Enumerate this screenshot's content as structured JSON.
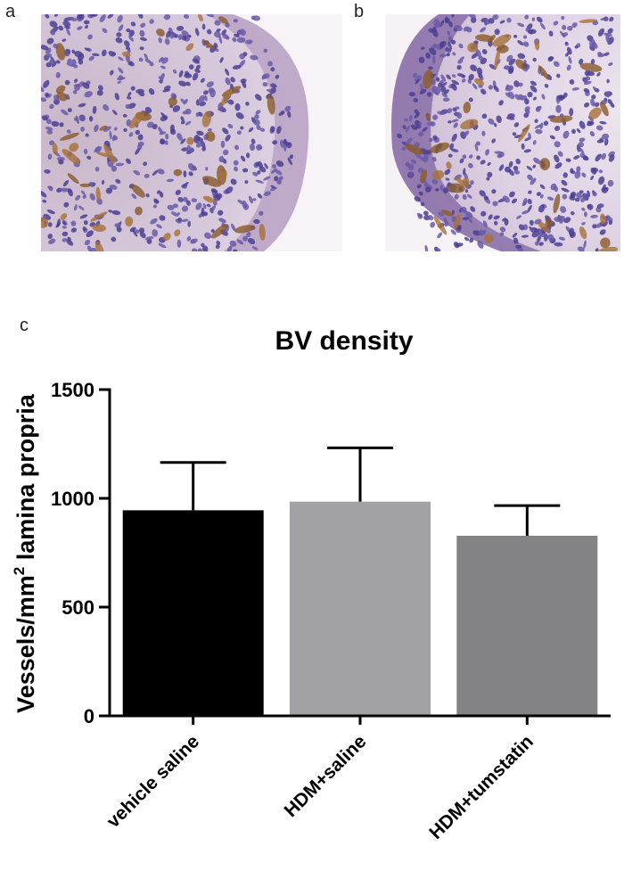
{
  "panels": {
    "a": "a",
    "b": "b",
    "c": "c"
  },
  "chart_data": {
    "type": "bar",
    "title": "BV density",
    "ylabel_main": "Vessels/mm",
    "ylabel_sup": "2",
    "ylabel_rest": " lamina propria",
    "xlabel": "",
    "categories": [
      "vehicle saline",
      "HDM+saline",
      "HDM+tumstatin"
    ],
    "values": [
      945,
      985,
      828
    ],
    "error_upper": [
      1165,
      1232,
      967
    ],
    "ylim": [
      0,
      1500
    ],
    "yticks": [
      0,
      500,
      1000,
      1500
    ],
    "bar_colors": [
      "#000000",
      "#a2a2a5",
      "#838385"
    ],
    "grid": false,
    "legend": "none"
  }
}
